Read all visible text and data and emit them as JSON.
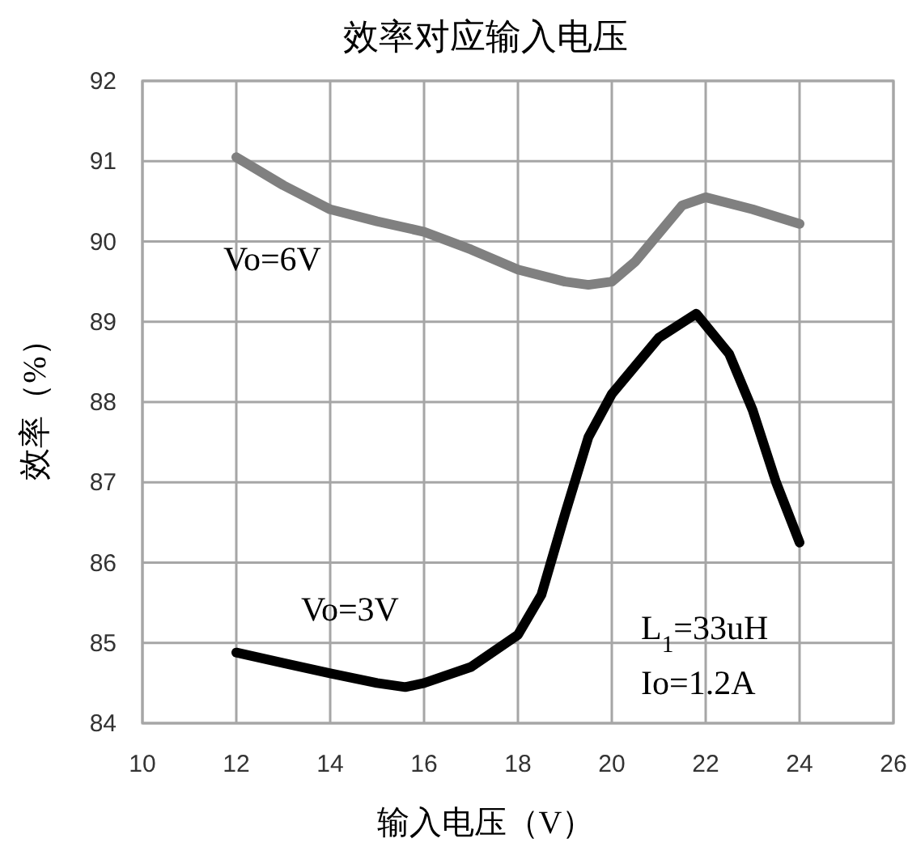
{
  "chart_data": {
    "type": "line",
    "title": "效率对应输入电压",
    "xlabel": "输入电压（V）",
    "ylabel": "效率（%）",
    "xlim": [
      10,
      26
    ],
    "xticks": [
      10,
      12,
      14,
      16,
      18,
      20,
      22,
      24,
      26
    ],
    "ylim": [
      84,
      92
    ],
    "yticks": [
      84,
      85,
      86,
      87,
      88,
      89,
      90,
      91,
      92
    ],
    "grid": true,
    "legend": false,
    "marker": "none",
    "line_style": "solid",
    "annotations": [
      "L$_{1}$=33uH",
      "Io=1.2A"
    ],
    "series": [
      {
        "name": "Vo=6V",
        "color": "#808080",
        "x": [
          12,
          13,
          14,
          15,
          16,
          17,
          18,
          19,
          19.5,
          20,
          20.5,
          21,
          21.5,
          22,
          23,
          24
        ],
        "values": [
          91.05,
          90.7,
          90.4,
          90.25,
          90.12,
          89.9,
          89.65,
          89.5,
          89.46,
          89.5,
          89.75,
          90.1,
          90.45,
          90.55,
          90.4,
          90.22
        ]
      },
      {
        "name": "Vo=3V",
        "color": "#000000",
        "x": [
          12,
          13,
          14,
          15,
          15.6,
          16,
          17,
          18,
          18.5,
          19,
          19.5,
          20,
          21,
          21.8,
          22.5,
          23,
          23.5,
          24
        ],
        "values": [
          84.88,
          84.75,
          84.62,
          84.5,
          84.45,
          84.5,
          84.7,
          85.1,
          85.6,
          86.6,
          87.56,
          88.1,
          88.8,
          89.1,
          88.6,
          87.9,
          87.0,
          86.25
        ]
      }
    ]
  }
}
